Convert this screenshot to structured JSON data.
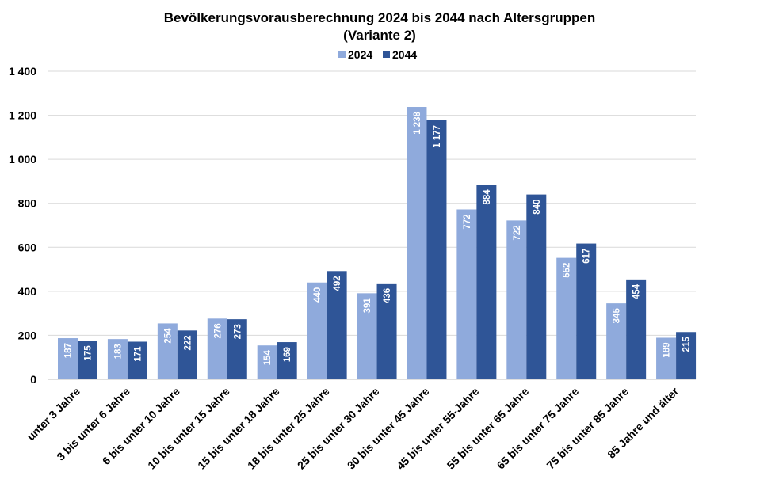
{
  "chart_data": {
    "type": "bar",
    "title": "Bevölkerungsvorausberechnung 2024 bis 2044 nach Altersgruppen",
    "subtitle": "(Variante 2)",
    "xlabel": "",
    "ylabel": "",
    "ylim": [
      0,
      1400
    ],
    "yticks": [
      0,
      200,
      400,
      600,
      800,
      1000,
      1200,
      1400
    ],
    "ytick_labels": [
      "0",
      "200",
      "400",
      "600",
      "800",
      "1 000",
      "1 200",
      "1 400"
    ],
    "grid": true,
    "legend_position": "top-center",
    "categories": [
      "unter 3 Jahre",
      "3 bis unter 6 Jahre",
      "6 bis unter 10 Jahre",
      "10 bis unter 15 Jahre",
      "15 bis unter 18 Jahre",
      "18 bis unter 25 Jahre",
      "25 bis unter 30 Jahre",
      "30 bis unter 45 Jahre",
      "45 bis unter 55-Jahre",
      "55 bis unter 65 Jahre",
      "65 bis unter 75 Jahre",
      "75 bis unter 85 Jahre",
      "85 Jahre und älter"
    ],
    "series": [
      {
        "name": "2024",
        "color": "#8faadc",
        "values": [
          187,
          183,
          254,
          276,
          154,
          440,
          391,
          1238,
          772,
          722,
          552,
          345,
          189
        ],
        "labels": [
          "187",
          "183",
          "254",
          "276",
          "154",
          "440",
          "391",
          "1 238",
          "772",
          "722",
          "552",
          "345",
          "189"
        ]
      },
      {
        "name": "2044",
        "color": "#2f5597",
        "values": [
          175,
          171,
          222,
          273,
          169,
          492,
          436,
          1177,
          884,
          840,
          617,
          454,
          215
        ],
        "labels": [
          "175",
          "171",
          "222",
          "273",
          "169",
          "492",
          "436",
          "1 177",
          "884",
          "840",
          "617",
          "454",
          "215"
        ]
      }
    ]
  }
}
